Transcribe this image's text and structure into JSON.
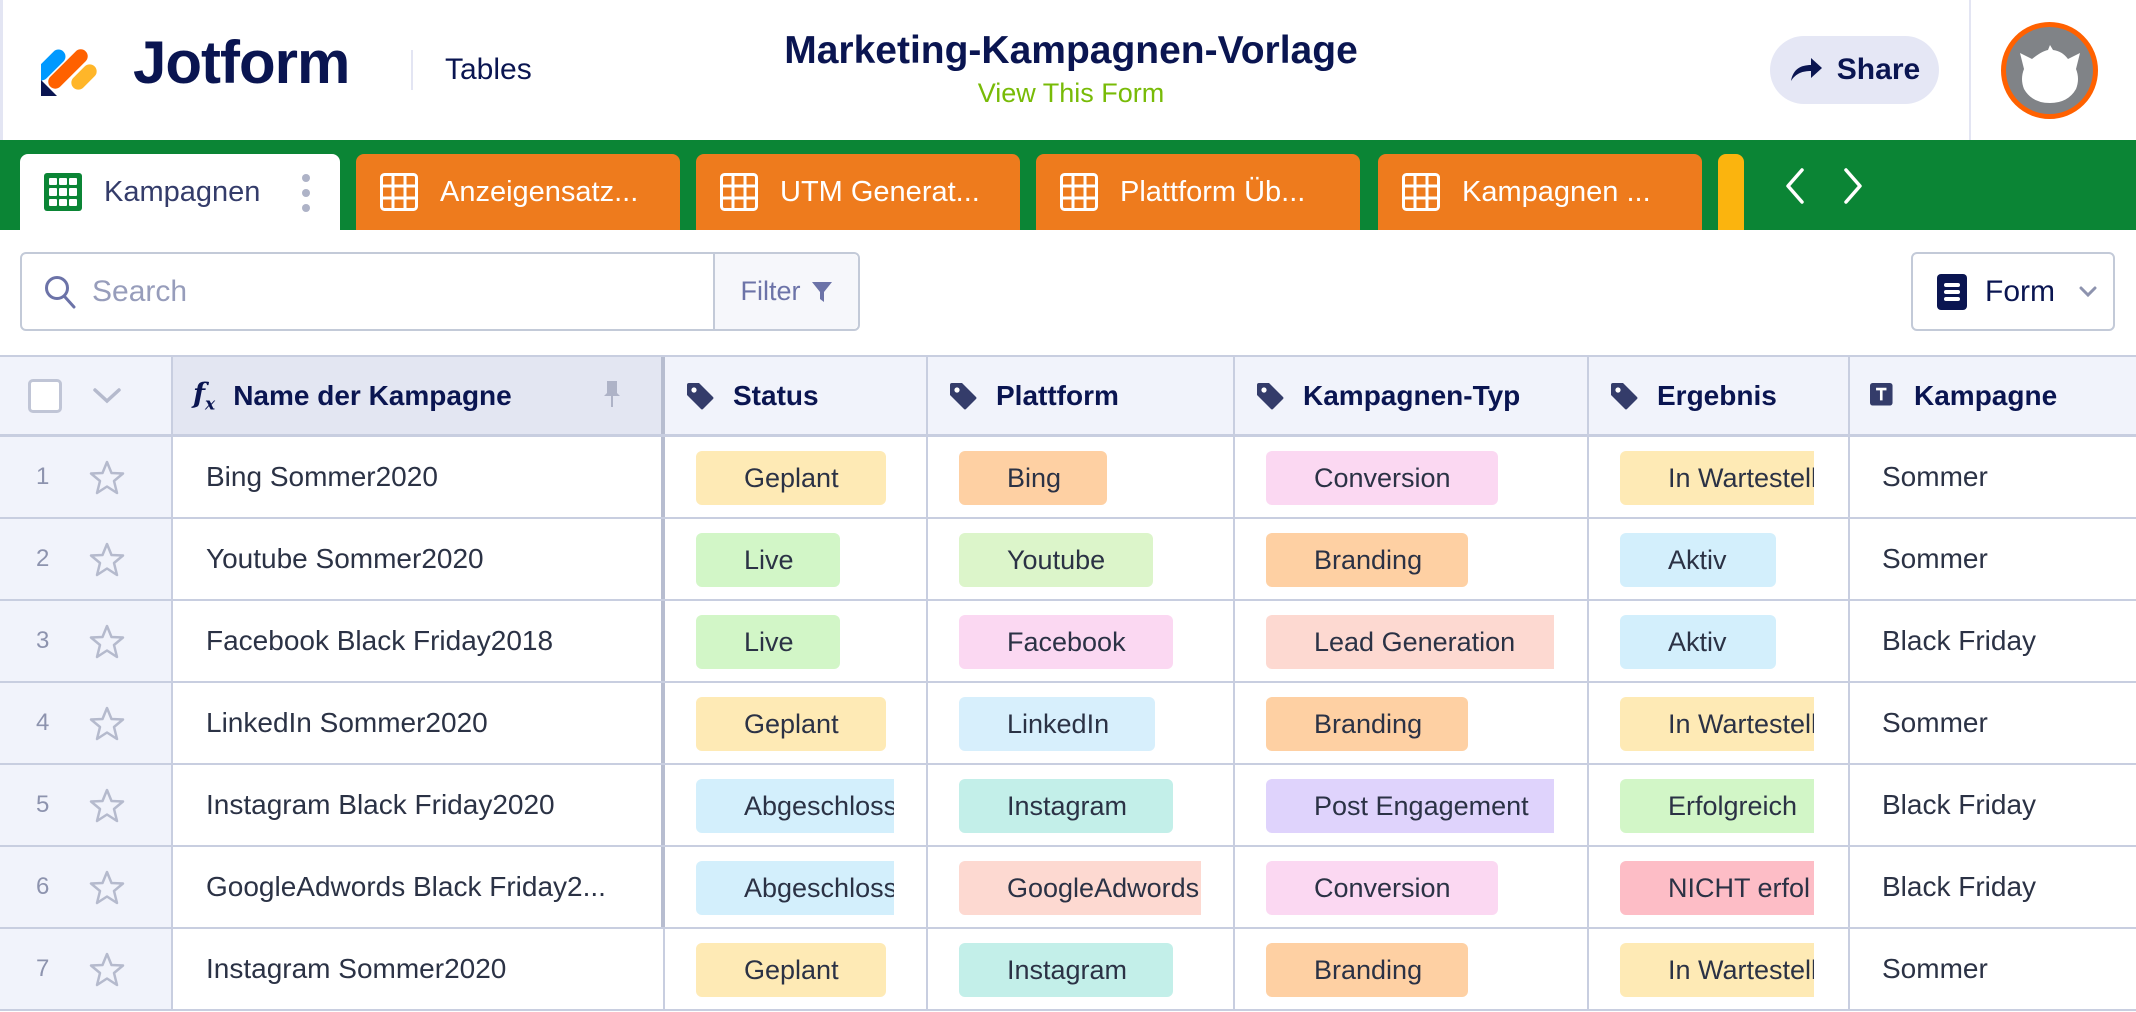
{
  "header": {
    "brand": "Jotform",
    "product": "Tables",
    "title": "Marketing-Kampagnen-Vorlage",
    "view_form_link": "View This Form",
    "share_label": "Share",
    "colors": {
      "navy": "#0a1551",
      "green_link": "#78bb07",
      "avatar_ring": "#ff6100"
    }
  },
  "tabs": [
    {
      "label": "Kampagnen",
      "active": true,
      "icon": "grid-icon"
    },
    {
      "label": "Anzeigensatz...",
      "active": false,
      "icon": "grid-icon"
    },
    {
      "label": "UTM Generat...",
      "active": false,
      "icon": "grid-icon"
    },
    {
      "label": "Plattform Üb...",
      "active": false,
      "icon": "grid-icon"
    },
    {
      "label": "Kampagnen ...",
      "active": false,
      "icon": "grid-icon"
    }
  ],
  "tabbar_colors": {
    "bar": "#0b8535",
    "tab": "#ee7b1d",
    "partial_tab": "#fbb40e"
  },
  "toolbar": {
    "search_placeholder": "Search",
    "filter_label": "Filter",
    "view_selector_label": "Form"
  },
  "table": {
    "columns": [
      {
        "label": "Name der Kampagne",
        "icon": "formula-icon",
        "pinned": true
      },
      {
        "label": "Status",
        "icon": "tag-icon"
      },
      {
        "label": "Plattform",
        "icon": "tag-icon"
      },
      {
        "label": "Kampagnen-Typ",
        "icon": "tag-icon"
      },
      {
        "label": "Ergebnis",
        "icon": "tag-icon"
      },
      {
        "label": "Kampagne",
        "icon": "text-icon"
      }
    ],
    "rows": [
      {
        "num": "1",
        "name": "Bing Sommer2020",
        "status": "Geplant",
        "plattform": "Bing",
        "typ": "Conversion",
        "ergebnis": "In Wartestell",
        "kampagne": "Sommer"
      },
      {
        "num": "2",
        "name": "Youtube Sommer2020",
        "status": "Live",
        "plattform": "Youtube",
        "typ": "Branding",
        "ergebnis": "Aktiv",
        "kampagne": "Sommer"
      },
      {
        "num": "3",
        "name": "Facebook Black Friday2018",
        "status": "Live",
        "plattform": "Facebook",
        "typ": "Lead Generation",
        "ergebnis": "Aktiv",
        "kampagne": "Black Friday"
      },
      {
        "num": "4",
        "name": "LinkedIn Sommer2020",
        "status": "Geplant",
        "plattform": "LinkedIn",
        "typ": "Branding",
        "ergebnis": "In Wartestell",
        "kampagne": "Sommer"
      },
      {
        "num": "5",
        "name": "Instagram Black Friday2020",
        "status": "Abgeschloss",
        "plattform": "Instagram",
        "typ": "Post Engagement",
        "ergebnis": "Erfolgreich",
        "kampagne": "Black Friday"
      },
      {
        "num": "6",
        "name": "GoogleAdwords Black Friday2...",
        "status": "Abgeschloss",
        "plattform": "GoogleAdwords",
        "typ": "Conversion",
        "ergebnis": "NICHT erfol",
        "kampagne": "Black Friday"
      },
      {
        "num": "7",
        "name": "Instagram Sommer2020",
        "status": "Geplant",
        "plattform": "Instagram",
        "typ": "Branding",
        "ergebnis": "In Wartestell",
        "kampagne": "Sommer"
      }
    ],
    "pill_colors": {
      "Geplant": "#feeab5",
      "Live": "#d2f6c7",
      "Abgeschloss": "#d3effc",
      "Bing": "#fed0a3",
      "Youtube": "#dcf5ca",
      "Facebook": "#fbd8f2",
      "LinkedIn": "#d7effc",
      "Instagram": "#c3efe9",
      "GoogleAdwords": "#fdd9d1",
      "Conversion": "#fbd8f2",
      "Branding": "#fed0a3",
      "Lead Generation": "#fdd9d1",
      "Post Engagement": "#dfd3fc",
      "In Wartestell": "#feeab5",
      "Aktiv": "#d3effc",
      "Erfolgreich": "#d2f6c7",
      "NICHT erfol": "#fdbdc6"
    }
  }
}
